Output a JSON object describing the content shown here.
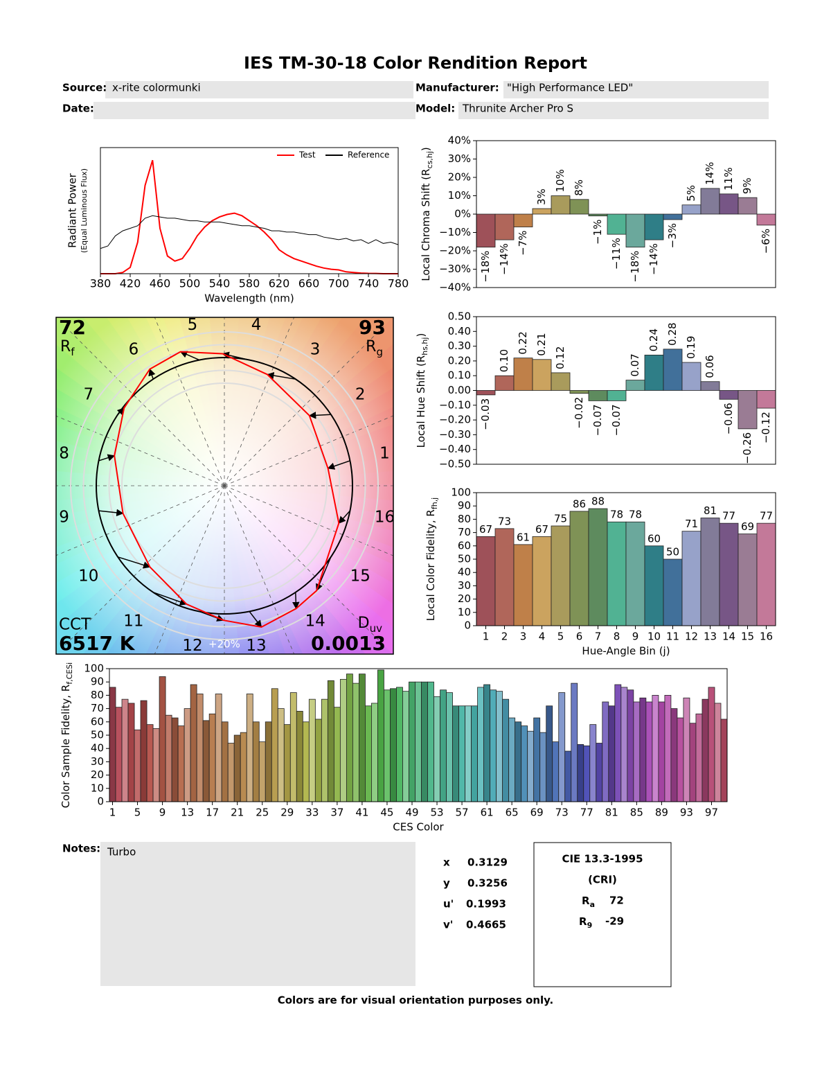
{
  "header": {
    "title": "IES TM-30-18 Color Rendition Report",
    "fields": [
      {
        "label": "Source:",
        "value": "x-rite colormunki"
      },
      {
        "label": "Manufacturer:",
        "value": "\"High Performance LED\""
      },
      {
        "label": "Date:"
      },
      {
        "label": "Model:",
        "value": "Thrunite Archer Pro S"
      }
    ]
  },
  "chart_data": [
    {
      "type": "line",
      "ylabel": [
        "Radiant Power",
        "(Equal Luminous Flux)"
      ],
      "xlabel": "Wavelength (nm)",
      "x": [
        380,
        390,
        400,
        410,
        420,
        430,
        440,
        450,
        460,
        470,
        480,
        490,
        500,
        510,
        520,
        530,
        540,
        550,
        560,
        570,
        580,
        590,
        600,
        610,
        620,
        630,
        640,
        650,
        660,
        670,
        680,
        690,
        700,
        710,
        720,
        730,
        740,
        750,
        760,
        770,
        780
      ],
      "series": [
        {
          "name": "Test",
          "color": "#ff0000",
          "values": [
            0,
            0,
            0,
            0.01,
            0.05,
            0.25,
            0.7,
            0.9,
            0.36,
            0.14,
            0.1,
            0.12,
            0.2,
            0.3,
            0.37,
            0.42,
            0.45,
            0.47,
            0.48,
            0.46,
            0.42,
            0.38,
            0.33,
            0.27,
            0.19,
            0.15,
            0.12,
            0.1,
            0.08,
            0.06,
            0.045,
            0.035,
            0.03,
            0.015,
            0.01,
            0.005,
            0.003,
            0.002,
            0,
            0,
            0
          ]
        },
        {
          "name": "Reference",
          "color": "#000000",
          "values": [
            0.2,
            0.22,
            0.3,
            0.34,
            0.36,
            0.38,
            0.44,
            0.46,
            0.45,
            0.44,
            0.44,
            0.43,
            0.42,
            0.42,
            0.41,
            0.41,
            0.41,
            0.4,
            0.39,
            0.38,
            0.38,
            0.37,
            0.36,
            0.34,
            0.34,
            0.33,
            0.33,
            0.32,
            0.31,
            0.31,
            0.29,
            0.28,
            0.27,
            0.28,
            0.26,
            0.27,
            0.24,
            0.27,
            0.24,
            0.25,
            0.23
          ]
        }
      ],
      "xlim": [
        380,
        780
      ],
      "xticks": [
        380,
        420,
        460,
        500,
        540,
        580,
        620,
        660,
        700,
        740,
        780
      ],
      "ylim": [
        0,
        1
      ],
      "legend": "upper right"
    },
    {
      "type": "bar",
      "ylabel": [
        "Local Chroma Shift (R",
        "cs,hj",
        ")"
      ],
      "values": [
        -18,
        -14,
        -7,
        3,
        10,
        8,
        -1,
        -11,
        -18,
        -14,
        -3,
        5,
        14,
        11,
        9,
        -6
      ],
      "value_labels": [
        "−18%",
        "−14%",
        "−7%",
        "3%",
        "10%",
        "8%",
        "−1%",
        "−11%",
        "−18%",
        "−14%",
        "−3%",
        "5%",
        "14%",
        "11%",
        "9%",
        "−6%"
      ],
      "value_label_orientation": "vertical",
      "colors": [
        "#9e5159",
        "#b0665a",
        "#bf8049",
        "#cba35f",
        "#a99b5c",
        "#7f9256",
        "#5e8b5e",
        "#51b293",
        "#6ba89c",
        "#2f7e87",
        "#41709a",
        "#97a2c9",
        "#827b98",
        "#775686",
        "#9a7c94",
        "#c37999"
      ],
      "ylim": [
        -40,
        40
      ],
      "yticks": [
        {
          "value": -40,
          "label": "−40%"
        },
        {
          "value": -30,
          "label": "−30%"
        },
        {
          "value": -20,
          "label": "−20%"
        },
        {
          "value": -10,
          "label": "−10%"
        },
        {
          "value": 0,
          "label": "0%"
        },
        {
          "value": 10,
          "label": "10%"
        },
        {
          "value": 20,
          "label": "20%"
        },
        {
          "value": 30,
          "label": "30%"
        },
        {
          "value": 40,
          "label": "40%"
        }
      ]
    },
    {
      "type": "bar",
      "ylabel": [
        "Local Hue Shift (R",
        "hs,hj",
        ")"
      ],
      "values": [
        -0.03,
        0.1,
        0.22,
        0.21,
        0.12,
        -0.02,
        -0.07,
        -0.07,
        0.07,
        0.24,
        0.28,
        0.19,
        0.06,
        -0.06,
        -0.26,
        -0.12
      ],
      "value_labels": [
        "−0.03",
        "0.10",
        "0.22",
        "0.21",
        "0.12",
        "−0.02",
        "−0.07",
        "−0.07",
        "0.07",
        "0.24",
        "0.28",
        "0.19",
        "0.06",
        "−0.06",
        "−0.26",
        "−0.12"
      ],
      "value_label_orientation": "vertical",
      "colors": [
        "#9e5159",
        "#b0665a",
        "#bf8049",
        "#cba35f",
        "#a99b5c",
        "#7f9256",
        "#5e8b5e",
        "#51b293",
        "#6ba89c",
        "#2f7e87",
        "#41709a",
        "#97a2c9",
        "#827b98",
        "#775686",
        "#9a7c94",
        "#c37999"
      ],
      "ylim": [
        -0.5,
        0.5
      ],
      "yticks": [
        {
          "value": -0.5,
          "label": "−0.50"
        },
        {
          "value": -0.4,
          "label": "−0.40"
        },
        {
          "value": -0.3,
          "label": "−0.30"
        },
        {
          "value": -0.2,
          "label": "−0.20"
        },
        {
          "value": -0.1,
          "label": "−0.10"
        },
        {
          "value": 0,
          "label": "0.00"
        },
        {
          "value": 0.1,
          "label": "0.10"
        },
        {
          "value": 0.2,
          "label": "0.20"
        },
        {
          "value": 0.3,
          "label": "0.30"
        },
        {
          "value": 0.4,
          "label": "0.40"
        },
        {
          "value": 0.5,
          "label": "0.50"
        }
      ]
    },
    {
      "type": "bar",
      "ylabel": [
        "Local Color Fidelity, R",
        "fh,j"
      ],
      "xlabel": "Hue-Angle Bin (j)",
      "categories": [
        1,
        2,
        3,
        4,
        5,
        6,
        7,
        8,
        9,
        10,
        11,
        12,
        13,
        14,
        15,
        16
      ],
      "values": [
        67,
        73,
        61,
        67,
        75,
        86,
        88,
        78,
        78,
        60,
        50,
        71,
        81,
        77,
        69,
        77
      ],
      "value_label_orientation": "horizontal",
      "colors": [
        "#9e5159",
        "#b0665a",
        "#bf8049",
        "#cba35f",
        "#a99b5c",
        "#7f9256",
        "#5e8b5e",
        "#51b293",
        "#6ba89c",
        "#2f7e87",
        "#41709a",
        "#97a2c9",
        "#827b98",
        "#775686",
        "#9a7c94",
        "#c37999"
      ],
      "ylim": [
        0,
        100
      ],
      "yticks": [
        0,
        10,
        20,
        30,
        40,
        50,
        60,
        70,
        80,
        90,
        100
      ]
    },
    {
      "type": "bar",
      "ylabel": [
        "Color Sample Fidelity, R",
        "f,CESi"
      ],
      "xlabel": "CES Color",
      "x": [
        1,
        2,
        3,
        4,
        5,
        6,
        7,
        8,
        9,
        10,
        11,
        12,
        13,
        14,
        15,
        16,
        17,
        18,
        19,
        20,
        21,
        22,
        23,
        24,
        25,
        26,
        27,
        28,
        29,
        30,
        31,
        32,
        33,
        34,
        35,
        36,
        37,
        38,
        39,
        40,
        41,
        42,
        43,
        44,
        45,
        46,
        47,
        48,
        49,
        50,
        51,
        52,
        53,
        54,
        55,
        56,
        57,
        58,
        59,
        60,
        61,
        62,
        63,
        64,
        65,
        66,
        67,
        68,
        69,
        70,
        71,
        72,
        73,
        74,
        75,
        76,
        77,
        78,
        79,
        80,
        81,
        82,
        83,
        84,
        85,
        86,
        87,
        88,
        89,
        90,
        91,
        92,
        93,
        94,
        95,
        96,
        97,
        98,
        99
      ],
      "values": [
        86,
        71,
        77,
        74,
        54,
        76,
        58,
        55,
        94,
        65,
        63,
        57,
        70,
        88,
        81,
        61,
        66,
        81,
        60,
        44,
        50,
        52,
        81,
        60,
        45,
        60,
        85,
        70,
        58,
        82,
        68,
        60,
        77,
        62,
        77,
        91,
        71,
        92,
        96,
        89,
        96,
        72,
        74,
        99,
        84,
        85,
        86,
        83,
        90,
        90,
        90,
        90,
        79,
        84,
        82,
        72,
        72,
        72,
        72,
        86,
        88,
        84,
        83,
        77,
        63,
        60,
        57,
        53,
        63,
        52,
        72,
        45,
        82,
        38,
        89,
        43,
        42,
        58,
        44,
        75,
        72,
        88,
        86,
        84,
        75,
        78,
        75,
        80,
        75,
        80,
        70,
        63,
        78,
        59,
        66,
        77,
        86,
        74,
        62
      ],
      "xlim": [
        0.5,
        99.5
      ],
      "xticks": [
        1,
        5,
        9,
        13,
        17,
        21,
        25,
        29,
        33,
        37,
        41,
        45,
        49,
        53,
        57,
        61,
        65,
        69,
        73,
        77,
        81,
        85,
        89,
        93,
        97
      ],
      "ylim": [
        0,
        100
      ],
      "yticks": [
        0,
        10,
        20,
        30,
        40,
        50,
        60,
        70,
        80,
        90,
        100
      ]
    },
    {
      "type": "color-vector",
      "rf": 72,
      "rf_label": "R",
      "rf_sub": "f",
      "rg": 93,
      "rg_label": "R",
      "rg_sub": "g",
      "cct_label": "CCT",
      "cct": "6517 K",
      "duv_label": "D",
      "duv_sub": "uv",
      "duv": 0.0013,
      "bins": [
        1,
        2,
        3,
        4,
        5,
        6,
        7,
        8,
        9,
        10,
        11,
        12,
        13,
        14,
        15,
        16
      ],
      "ring_label": "+20%"
    }
  ],
  "notes": {
    "label": "Notes:",
    "text": "Turbo"
  },
  "colorimetry": [
    {
      "label": "x",
      "value": 0.3129
    },
    {
      "label": "y",
      "value": 0.3256
    },
    {
      "label": "u'",
      "value": 0.1993
    },
    {
      "label": "v'",
      "value": 0.4665
    }
  ],
  "cri": {
    "title": "CIE 13.3-1995",
    "subtitle": "(CRI)",
    "ra": {
      "label": "R",
      "sub": "a",
      "value": 72
    },
    "r9": {
      "label": "R",
      "sub": "9",
      "value": -29
    }
  },
  "footer": "Colors are for visual orientation purposes only."
}
